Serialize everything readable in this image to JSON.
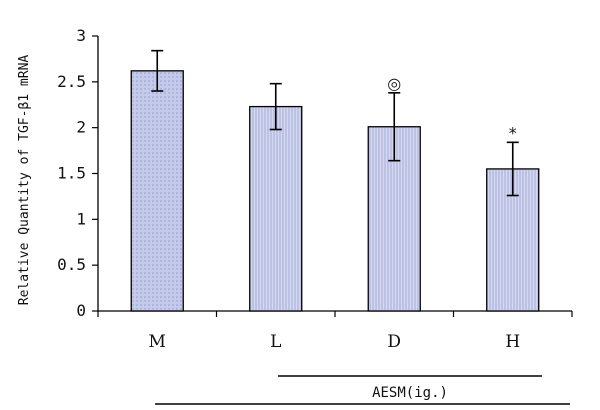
{
  "chart_data": {
    "type": "bar",
    "categories": [
      "M",
      "L",
      "D",
      "H"
    ],
    "values": [
      2.62,
      2.23,
      2.01,
      1.55
    ],
    "errors": [
      0.22,
      0.25,
      0.37,
      0.29
    ],
    "annotations": [
      "",
      "",
      "◎",
      "*"
    ],
    "ylabel": "Relative Quantity of TGF-β1 mRNA",
    "xlabel": "",
    "ylim": [
      0,
      3
    ],
    "yticks": [
      "0",
      "0.5",
      "1",
      "1.5",
      "2",
      "2.5",
      "3"
    ],
    "ytick_values": [
      0,
      0.5,
      1,
      1.5,
      2,
      2.5,
      3
    ],
    "group_label": "AESM(ig.)",
    "colors": {
      "bar_fill": "#c7cdea",
      "bar_stroke": "#000000",
      "axis": "#000000"
    },
    "grid": false
  }
}
